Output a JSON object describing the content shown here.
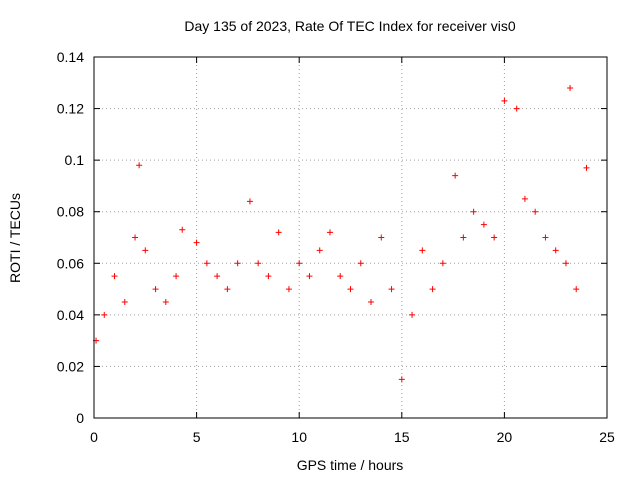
{
  "chart_data": {
    "type": "scatter",
    "title": "Day 135 of 2023, Rate Of TEC Index for receiver vis0",
    "xlabel": "GPS time / hours",
    "ylabel": "ROTI / TECUs",
    "xlim": [
      0,
      25
    ],
    "ylim": [
      0,
      0.14
    ],
    "xticks": [
      "0",
      "5",
      "10",
      "15",
      "20",
      "25"
    ],
    "yticks": [
      "0",
      "0.02",
      "0.04",
      "0.06",
      "0.08",
      "0.1",
      "0.12",
      "0.14"
    ],
    "grid": true,
    "marker": "+",
    "color": "#ff0000",
    "series": [
      {
        "x": [
          0.1,
          0.5,
          1.0,
          1.5,
          2.0,
          2.2,
          2.5,
          3.0,
          3.5,
          4.0,
          4.3,
          5.0,
          5.5,
          6.0,
          6.5,
          7.0,
          7.6,
          8.0,
          8.5,
          9.0,
          9.5,
          10.0,
          10.5,
          11.0,
          11.5,
          12.0,
          12.5,
          13.0,
          13.5,
          14.0,
          14.5,
          15.0,
          15.5,
          16.0,
          16.5,
          17.0,
          17.6,
          18.0,
          18.5,
          19.0,
          19.5,
          20.0,
          20.6,
          21.0,
          21.5,
          22.0,
          22.5,
          23.0,
          23.2,
          23.5,
          24.0
        ],
        "y": [
          0.03,
          0.04,
          0.055,
          0.045,
          0.07,
          0.098,
          0.065,
          0.05,
          0.045,
          0.055,
          0.073,
          0.068,
          0.06,
          0.055,
          0.05,
          0.06,
          0.084,
          0.06,
          0.055,
          0.072,
          0.05,
          0.06,
          0.055,
          0.065,
          0.072,
          0.055,
          0.05,
          0.06,
          0.045,
          0.07,
          0.05,
          0.015,
          0.04,
          0.065,
          0.05,
          0.06,
          0.094,
          0.07,
          0.08,
          0.075,
          0.07,
          0.123,
          0.12,
          0.085,
          0.08,
          0.07,
          0.065,
          0.06,
          0.128,
          0.05,
          0.097
        ]
      }
    ]
  }
}
